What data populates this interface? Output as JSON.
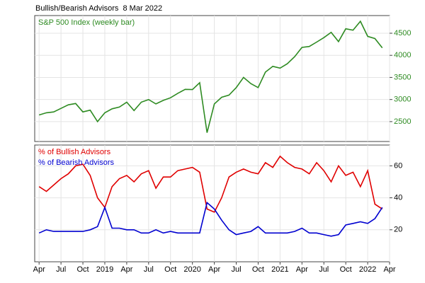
{
  "chart_data": [
    {
      "type": "line",
      "title": "Bullish/Bearish Advisors  8 Mar 2022",
      "x": [
        2018.25,
        2018.333,
        2018.417,
        2018.5,
        2018.583,
        2018.667,
        2018.75,
        2018.833,
        2018.917,
        2019,
        2019.083,
        2019.167,
        2019.25,
        2019.333,
        2019.417,
        2019.5,
        2019.583,
        2019.667,
        2019.75,
        2019.833,
        2019.917,
        2020,
        2020.083,
        2020.167,
        2020.25,
        2020.333,
        2020.417,
        2020.5,
        2020.583,
        2020.667,
        2020.75,
        2020.833,
        2020.917,
        2021,
        2021.083,
        2021.167,
        2021.25,
        2021.333,
        2021.417,
        2021.5,
        2021.583,
        2021.667,
        2021.75,
        2021.833,
        2021.917,
        2022,
        2022.083,
        2022.167
      ],
      "series": [
        {
          "name": "S&P 500 Index (weekly bar)",
          "color": "#2e8b22",
          "values": [
            2650,
            2700,
            2720,
            2800,
            2880,
            2910,
            2720,
            2760,
            2500,
            2700,
            2790,
            2830,
            2940,
            2750,
            2940,
            3000,
            2900,
            2980,
            3040,
            3140,
            3230,
            3225,
            3380,
            2250,
            2900,
            3050,
            3100,
            3270,
            3500,
            3360,
            3270,
            3620,
            3750,
            3710,
            3810,
            3970,
            4180,
            4200,
            4300,
            4400,
            4520,
            4310,
            4600,
            4570,
            4770,
            4430,
            4380,
            4170
          ]
        }
      ],
      "xlim": [
        2018.2,
        2022.25
      ],
      "ylim": [
        2050,
        4900
      ],
      "yticks": [
        2500,
        3000,
        3500,
        4000,
        4500
      ],
      "tick_color": "#2e8b22",
      "grid": true,
      "legend": "upper left"
    },
    {
      "type": "line",
      "x": [
        2018.25,
        2018.333,
        2018.417,
        2018.5,
        2018.583,
        2018.667,
        2018.75,
        2018.833,
        2018.917,
        2019,
        2019.083,
        2019.167,
        2019.25,
        2019.333,
        2019.417,
        2019.5,
        2019.583,
        2019.667,
        2019.75,
        2019.833,
        2019.917,
        2020,
        2020.083,
        2020.167,
        2020.25,
        2020.333,
        2020.417,
        2020.5,
        2020.583,
        2020.667,
        2020.75,
        2020.833,
        2020.917,
        2021,
        2021.083,
        2021.167,
        2021.25,
        2021.333,
        2021.417,
        2021.5,
        2021.583,
        2021.667,
        2021.75,
        2021.833,
        2021.917,
        2022,
        2022.083,
        2022.167
      ],
      "series": [
        {
          "name": "% of Bullish Advisors",
          "color": "#e00000",
          "values": [
            47,
            44,
            48,
            52,
            55,
            60,
            61,
            54,
            40,
            34,
            47,
            52,
            54,
            50,
            55,
            57,
            46,
            53,
            53,
            57,
            58,
            59,
            56,
            33,
            31,
            40,
            53,
            56,
            58,
            56,
            55,
            62,
            59,
            66,
            62,
            59,
            58,
            55,
            62,
            57,
            50,
            60,
            54,
            56,
            47,
            57,
            36,
            33
          ]
        },
        {
          "name": "% of Bearish Advisors",
          "color": "#0000d0",
          "values": [
            18,
            20,
            19,
            19,
            19,
            19,
            19,
            20,
            22,
            34,
            21,
            21,
            20,
            20,
            18,
            18,
            20,
            18,
            19,
            18,
            18,
            18,
            18,
            37,
            33,
            26,
            20,
            17,
            18,
            19,
            22,
            18,
            18,
            18,
            18,
            19,
            21,
            18,
            18,
            17,
            16,
            17,
            23,
            24,
            25,
            24,
            27,
            34
          ]
        }
      ],
      "xlim": [
        2018.2,
        2022.25
      ],
      "xticks": [
        {
          "value": 2018.25,
          "label": "Apr"
        },
        {
          "value": 2018.5,
          "label": "Jul"
        },
        {
          "value": 2018.75,
          "label": "Oct"
        },
        2019,
        {
          "value": 2019.25,
          "label": "Apr"
        },
        {
          "value": 2019.5,
          "label": "Jul"
        },
        {
          "value": 2019.75,
          "label": "Oct"
        },
        2020,
        {
          "value": 2020.25,
          "label": "Apr"
        },
        {
          "value": 2020.5,
          "label": "Jul"
        },
        {
          "value": 2020.75,
          "label": "Oct"
        },
        2021,
        {
          "value": 2021.25,
          "label": "Apr"
        },
        {
          "value": 2021.5,
          "label": "Jul"
        },
        {
          "value": 2021.75,
          "label": "Oct"
        },
        2022,
        {
          "value": 2022.25,
          "label": "Apr"
        }
      ],
      "ylim": [
        0,
        73
      ],
      "yticks": [
        20,
        40,
        60
      ],
      "tick_color": "#000000",
      "grid": true,
      "legend": "upper left"
    }
  ]
}
